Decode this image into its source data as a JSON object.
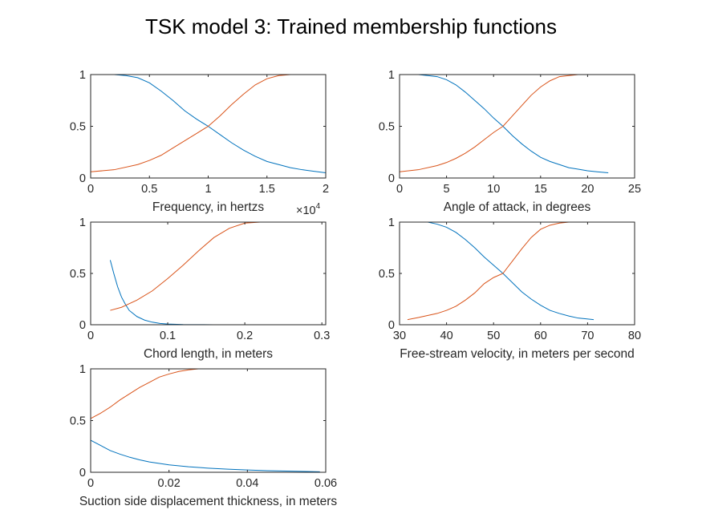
{
  "title": "TSK model 3: Trained membership functions",
  "colors": {
    "mf1": "#0072BD",
    "mf2": "#D95319",
    "axes": "#262626"
  },
  "chart_data": [
    {
      "type": "line",
      "xlabel": "Frequency, in hertzs",
      "ylabel": "",
      "xlim": [
        0,
        20000
      ],
      "ylim": [
        0,
        1
      ],
      "xticks": [
        0,
        5000,
        10000,
        15000,
        20000
      ],
      "xtick_labels": [
        "0",
        "0.5",
        "1",
        "1.5",
        "2"
      ],
      "yticks": [
        0,
        0.5,
        1
      ],
      "ytick_labels": [
        "0",
        "0.5",
        "1"
      ],
      "exponent_label": {
        "base": "×10",
        "power": "4"
      },
      "series": [
        {
          "x": [
            0,
            2000,
            3000,
            4000,
            5000,
            6000,
            7000,
            8000,
            9000,
            10000,
            11000,
            12000,
            13000,
            14000,
            15000,
            16000,
            17000,
            18000,
            19000,
            20000
          ],
          "values": [
            1,
            1,
            0.99,
            0.97,
            0.92,
            0.84,
            0.75,
            0.65,
            0.57,
            0.5,
            0.42,
            0.34,
            0.27,
            0.21,
            0.16,
            0.13,
            0.1,
            0.08,
            0.065,
            0.05
          ]
        },
        {
          "x": [
            0,
            2000,
            4000,
            5000,
            6000,
            7000,
            8000,
            9000,
            10000,
            11000,
            12000,
            13000,
            14000,
            15000,
            16000,
            17000,
            18000,
            20000
          ],
          "values": [
            0.06,
            0.08,
            0.13,
            0.17,
            0.22,
            0.29,
            0.36,
            0.43,
            0.5,
            0.6,
            0.71,
            0.81,
            0.9,
            0.96,
            0.99,
            1,
            1,
            1
          ]
        }
      ]
    },
    {
      "type": "line",
      "xlabel": "Angle of attack, in degrees",
      "ylabel": "",
      "xlim": [
        0,
        25
      ],
      "ylim": [
        0,
        1
      ],
      "xticks": [
        0,
        5,
        10,
        15,
        20,
        25
      ],
      "xtick_labels": [
        "0",
        "5",
        "10",
        "15",
        "20",
        "25"
      ],
      "yticks": [
        0,
        0.5,
        1
      ],
      "ytick_labels": [
        "0",
        "0.5",
        "1"
      ],
      "series": [
        {
          "x": [
            0,
            2,
            3,
            4,
            5,
            6,
            7,
            8,
            9,
            10,
            11,
            12,
            13,
            14,
            15,
            16,
            17,
            18,
            19,
            20,
            21,
            22.2
          ],
          "values": [
            1,
            1,
            0.99,
            0.98,
            0.95,
            0.9,
            0.83,
            0.75,
            0.67,
            0.58,
            0.5,
            0.41,
            0.33,
            0.26,
            0.2,
            0.16,
            0.13,
            0.1,
            0.085,
            0.07,
            0.06,
            0.05
          ]
        },
        {
          "x": [
            0,
            2,
            4,
            5,
            6,
            7,
            8,
            9,
            10,
            11,
            12,
            13,
            14,
            15,
            16,
            17,
            18,
            19,
            20,
            22.2
          ],
          "values": [
            0.06,
            0.08,
            0.12,
            0.15,
            0.19,
            0.24,
            0.3,
            0.37,
            0.44,
            0.5,
            0.6,
            0.7,
            0.8,
            0.88,
            0.94,
            0.98,
            0.99,
            1,
            1,
            1
          ]
        }
      ]
    },
    {
      "type": "line",
      "xlabel": "Chord length, in meters",
      "ylabel": "",
      "xlim": [
        0,
        0.305
      ],
      "ylim": [
        0,
        1
      ],
      "xticks": [
        0,
        0.1,
        0.2,
        0.3
      ],
      "xtick_labels": [
        "0",
        "0.1",
        "0.2",
        "0.3"
      ],
      "yticks": [
        0,
        0.5,
        1
      ],
      "ytick_labels": [
        "0",
        "0.5",
        "1"
      ],
      "series": [
        {
          "x": [
            0.0254,
            0.03,
            0.035,
            0.04,
            0.045,
            0.05,
            0.06,
            0.07,
            0.08,
            0.09,
            0.1,
            0.12,
            0.14,
            0.16,
            0.2,
            0.25,
            0.3048
          ],
          "values": [
            0.63,
            0.5,
            0.37,
            0.27,
            0.2,
            0.14,
            0.08,
            0.045,
            0.025,
            0.013,
            0.007,
            0.002,
            0.001,
            0,
            0,
            0,
            0
          ]
        },
        {
          "x": [
            0.0254,
            0.04,
            0.06,
            0.08,
            0.1,
            0.12,
            0.14,
            0.16,
            0.18,
            0.2,
            0.22,
            0.25,
            0.28,
            0.3048
          ],
          "values": [
            0.14,
            0.17,
            0.24,
            0.33,
            0.45,
            0.58,
            0.72,
            0.85,
            0.94,
            0.99,
            1,
            1,
            1,
            1
          ]
        }
      ]
    },
    {
      "type": "line",
      "xlabel": "Free-stream velocity, in meters per second",
      "ylabel": "",
      "xlim": [
        30,
        80
      ],
      "ylim": [
        0,
        1
      ],
      "xticks": [
        30,
        40,
        50,
        60,
        70,
        80
      ],
      "xtick_labels": [
        "30",
        "40",
        "50",
        "60",
        "70",
        "80"
      ],
      "yticks": [
        0,
        0.5,
        1
      ],
      "ytick_labels": [
        "0",
        "0.5",
        "1"
      ],
      "series": [
        {
          "x": [
            31.7,
            34,
            36,
            38,
            40,
            42,
            44,
            46,
            48,
            50,
            52,
            54,
            56,
            58,
            60,
            62,
            64,
            66,
            68,
            71.3
          ],
          "values": [
            1,
            1,
            1,
            0.98,
            0.95,
            0.9,
            0.83,
            0.75,
            0.66,
            0.58,
            0.5,
            0.41,
            0.32,
            0.25,
            0.19,
            0.14,
            0.11,
            0.085,
            0.065,
            0.05
          ]
        },
        {
          "x": [
            31.7,
            34,
            38,
            40,
            42,
            44,
            46,
            48,
            50,
            52,
            54,
            56,
            58,
            60,
            62,
            64,
            66,
            68,
            71.3
          ],
          "values": [
            0.05,
            0.07,
            0.11,
            0.14,
            0.18,
            0.24,
            0.31,
            0.4,
            0.46,
            0.5,
            0.62,
            0.74,
            0.85,
            0.93,
            0.97,
            0.99,
            1,
            1,
            1
          ]
        }
      ]
    },
    {
      "type": "line",
      "xlabel": "Suction side displacement thickness, in meters",
      "ylabel": "",
      "xlim": [
        0,
        0.06
      ],
      "ylim": [
        0,
        1
      ],
      "xticks": [
        0,
        0.02,
        0.04,
        0.06
      ],
      "xtick_labels": [
        "0",
        "0.02",
        "0.04",
        "0.06"
      ],
      "yticks": [
        0,
        0.5,
        1
      ],
      "ytick_labels": [
        "0",
        "0.5",
        "1"
      ],
      "series": [
        {
          "x": [
            0,
            0.0025,
            0.005,
            0.0075,
            0.01,
            0.0125,
            0.015,
            0.02,
            0.025,
            0.03,
            0.035,
            0.04,
            0.045,
            0.05,
            0.055,
            0.0585
          ],
          "values": [
            0.31,
            0.26,
            0.21,
            0.175,
            0.145,
            0.12,
            0.1,
            0.072,
            0.053,
            0.04,
            0.03,
            0.022,
            0.016,
            0.012,
            0.008,
            0.005
          ]
        },
        {
          "x": [
            0,
            0.0025,
            0.005,
            0.0075,
            0.01,
            0.0125,
            0.015,
            0.0175,
            0.02,
            0.0225,
            0.025,
            0.0275,
            0.03,
            0.035,
            0.04,
            0.05,
            0.06
          ],
          "values": [
            0.52,
            0.57,
            0.63,
            0.7,
            0.76,
            0.82,
            0.87,
            0.92,
            0.95,
            0.975,
            0.99,
            1,
            1,
            1,
            1,
            1,
            1
          ]
        }
      ]
    }
  ]
}
